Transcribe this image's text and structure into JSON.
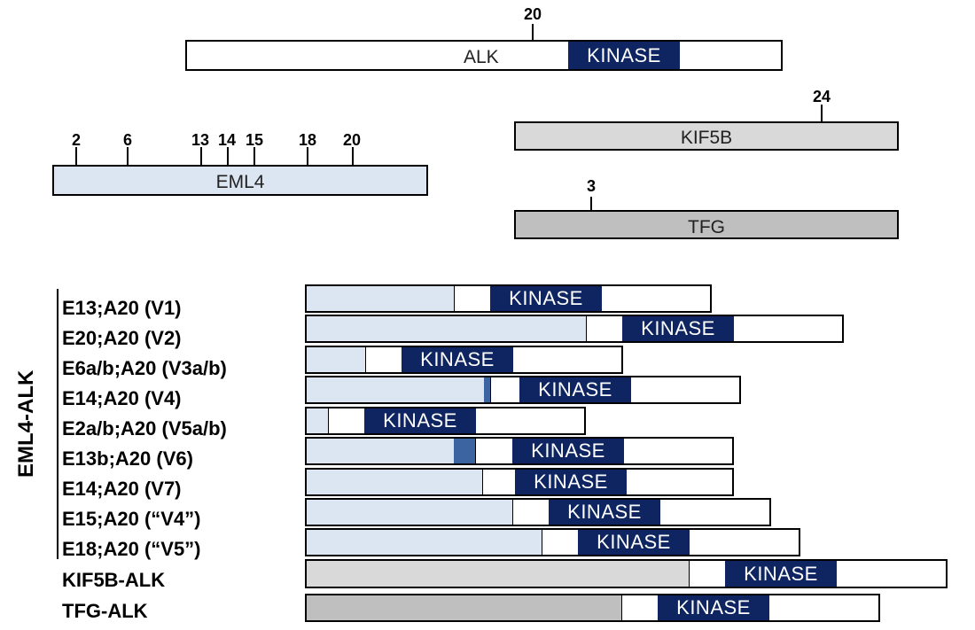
{
  "colors": {
    "kinase": "#0e2561",
    "eml4": "#dce6f2",
    "eml4_extra": "#3b64a0",
    "kif5b": "#d9d9d9",
    "tfg": "#bfbfbf",
    "white": "#ffffff"
  },
  "kinase_label": "KINASE",
  "genes": {
    "alk": {
      "label": "ALK",
      "exon_ticks": [
        "20"
      ]
    },
    "eml4": {
      "label": "EML4",
      "exon_ticks": [
        "2",
        "6",
        "13",
        "14",
        "15",
        "18",
        "20"
      ]
    },
    "kif5b": {
      "label": "KIF5B",
      "exon_ticks": [
        "24"
      ]
    },
    "tfg": {
      "label": "TFG",
      "exon_ticks": [
        "3"
      ]
    }
  },
  "group_label": "EML4-ALK",
  "fusions": [
    {
      "label": "E13;A20 (V1)",
      "partner": "eml4"
    },
    {
      "label": "E20;A20 (V2)",
      "partner": "eml4"
    },
    {
      "label": "E6a/b;A20 (V3a/b)",
      "partner": "eml4"
    },
    {
      "label": "E14;A20 (V4)",
      "partner": "eml4"
    },
    {
      "label": "E2a/b;A20 (V5a/b)",
      "partner": "eml4"
    },
    {
      "label": "E13b;A20 (V6)",
      "partner": "eml4"
    },
    {
      "label": "E14;A20 (V7)",
      "partner": "eml4"
    },
    {
      "label": "E15;A20 (“V4”)",
      "partner": "eml4"
    },
    {
      "label": "E18;A20 (“V5”)",
      "partner": "eml4"
    },
    {
      "label": "KIF5B-ALK",
      "partner": "kif5b"
    },
    {
      "label": "TFG-ALK",
      "partner": "tfg"
    }
  ]
}
